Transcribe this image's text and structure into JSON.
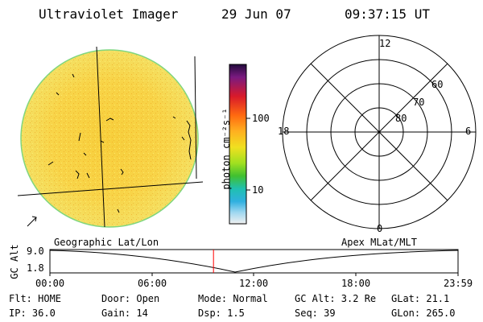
{
  "header": {
    "title": "Ultraviolet Imager",
    "date": "29 Jun 07",
    "time": "09:37:15 UT"
  },
  "colorbar": {
    "label": "photon cm⁻²s⁻¹",
    "ticks": [
      "100",
      "10"
    ],
    "tick_values": [
      100,
      10
    ]
  },
  "polar_plot": {
    "mlt_labels": [
      "12",
      "18",
      "6",
      "0"
    ],
    "mlat_labels": [
      "60",
      "70",
      "80"
    ]
  },
  "timeline": {
    "left_label": "Geographic Lat/Lon",
    "right_label": "Apex MLat/MLT",
    "ylabel": "GC Alt",
    "ytick_top": "9.0",
    "ytick_bottom": "1.8",
    "xticks": [
      "00:00",
      "06:00",
      "12:00",
      "18:00",
      "23:59"
    ],
    "current_time_hours": 9.62,
    "marker_color": "#ff0000"
  },
  "info": {
    "flt": "Flt: HOME",
    "ip": "IP: 36.0",
    "door": "Door: Open",
    "gain": "Gain: 14",
    "mode": "Mode: Normal",
    "dsp": "Dsp:   1.5",
    "gcalt": "GC Alt: 3.2 Re",
    "seq": "Seq: 39",
    "glat": "GLat:  21.1",
    "glon": "GLon: 265.0"
  },
  "colors": {
    "disk_fill": "#f9d64a",
    "disk_edge": "#7fd67f",
    "grid": "#000000"
  }
}
